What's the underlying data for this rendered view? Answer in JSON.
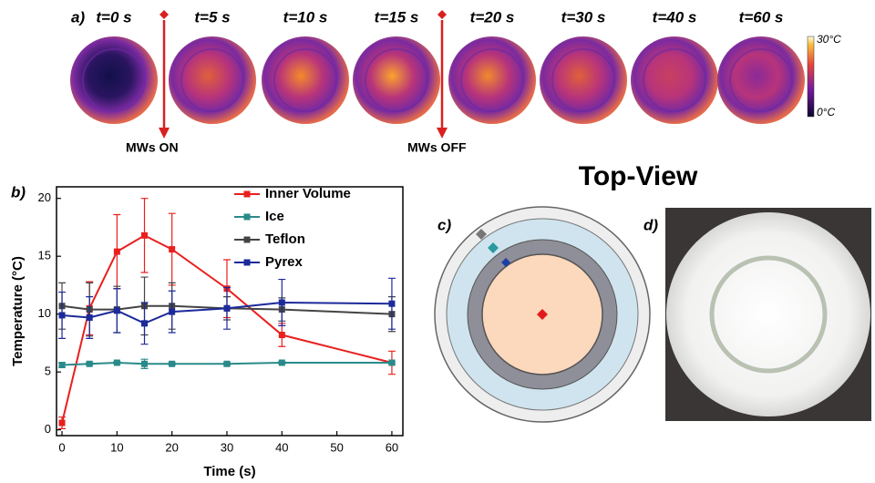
{
  "panel_a": {
    "label": "a)",
    "times": [
      "t=0 s",
      "t=5 s",
      "t=10 s",
      "t=15 s",
      "t=20 s",
      "t=30 s",
      "t=40 s",
      "t=60 s"
    ],
    "colorbar": {
      "max_label": "30°C",
      "min_label": "0°C"
    },
    "on_label": "MWs ON",
    "off_label": "MWs OFF"
  },
  "chart_data": {
    "type": "line",
    "label": "b)",
    "x_label": "Time (s)",
    "y_label": "Temperature (°C)",
    "x": [
      0,
      5,
      10,
      15,
      20,
      30,
      40,
      60
    ],
    "xlim": [
      -1,
      62
    ],
    "xticks": [
      0,
      10,
      20,
      30,
      40,
      50,
      60
    ],
    "ylim": [
      -0.5,
      21
    ],
    "yticks": [
      0,
      5,
      10,
      15,
      20
    ],
    "legend": "upper right",
    "series": [
      {
        "name": "Inner Volume",
        "color": "#e8201e",
        "values": [
          0.6,
          10.5,
          15.4,
          16.8,
          15.6,
          12.2,
          8.2,
          5.8
        ],
        "error": [
          0.5,
          2.3,
          3.2,
          3.2,
          3.1,
          2.5,
          1.0,
          1.0
        ]
      },
      {
        "name": "Ice",
        "color": "#2a8a8a",
        "values": [
          5.6,
          5.7,
          5.8,
          5.7,
          5.7,
          5.7,
          5.8,
          5.8
        ],
        "error": [
          0.2,
          0.1,
          0.1,
          0.4,
          0.1,
          0.1,
          0.1,
          0.1
        ]
      },
      {
        "name": "Teflon",
        "color": "#444444",
        "values": [
          10.7,
          10.4,
          10.4,
          10.7,
          10.7,
          10.5,
          10.4,
          10.0
        ],
        "error": [
          2.0,
          2.3,
          2.0,
          2.5,
          2.0,
          1.0,
          1.0,
          1.5
        ]
      },
      {
        "name": "Pyrex",
        "color": "#1c2a9a",
        "values": [
          9.9,
          9.7,
          10.3,
          9.2,
          10.2,
          10.5,
          11.0,
          10.9
        ],
        "error": [
          2.0,
          1.8,
          1.9,
          1.8,
          1.8,
          1.8,
          2.0,
          2.2
        ]
      }
    ]
  },
  "top_view": "Top-View",
  "panel_c": {
    "label": "c)"
  },
  "panel_d": {
    "label": "d)"
  }
}
